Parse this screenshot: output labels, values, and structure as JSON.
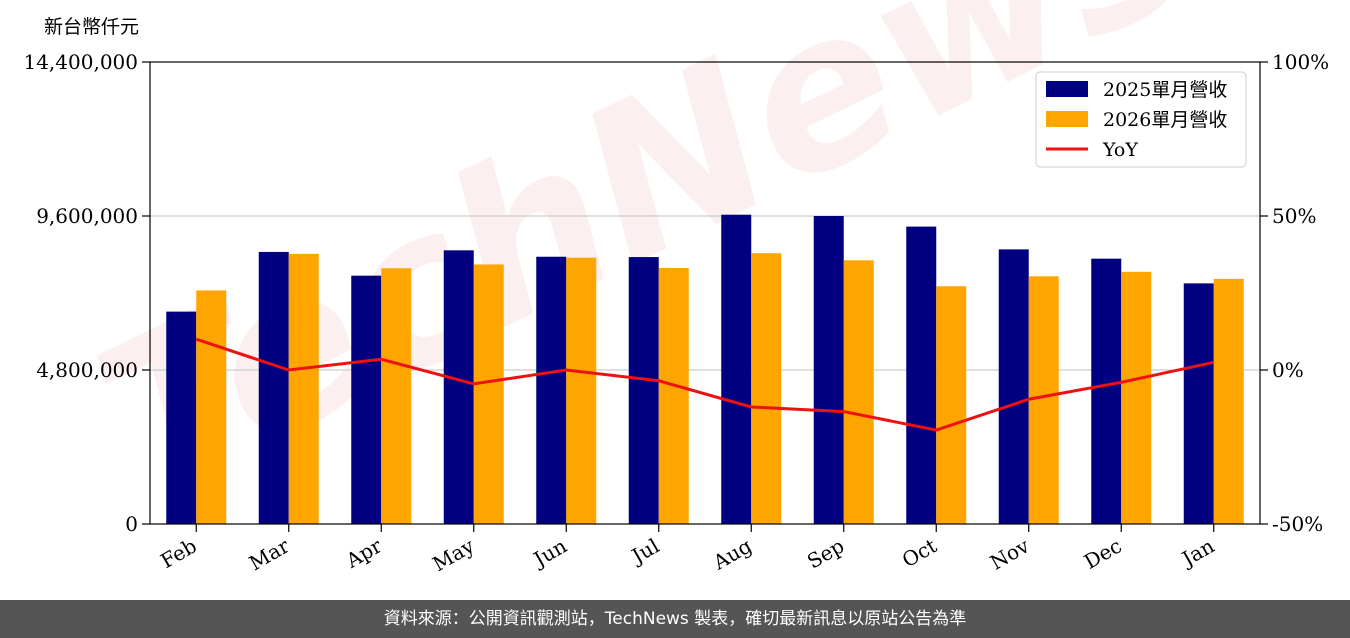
{
  "chart_data": {
    "type": "bar",
    "ylabel": "新台幣仟元",
    "categories": [
      "Feb",
      "Mar",
      "Apr",
      "May",
      "Jun",
      "Jul",
      "Aug",
      "Sep",
      "Oct",
      "Nov",
      "Dec",
      "Jan"
    ],
    "series": [
      {
        "name": "2025單月營收",
        "color": "#000080",
        "values": [
          6620000,
          8480000,
          7740000,
          8530000,
          8330000,
          8320000,
          9640000,
          9600000,
          9270000,
          8560000,
          8270000,
          7500000
        ]
      },
      {
        "name": "2026單月營收",
        "color": "#FFA500",
        "values": [
          7280000,
          8420000,
          7970000,
          8090000,
          8300000,
          7980000,
          8440000,
          8220000,
          7410000,
          7720000,
          7860000,
          7640000
        ]
      }
    ],
    "line_series": {
      "name": "YoY",
      "color": "#EE1111",
      "values": [
        10.0,
        0.0,
        3.5,
        -4.5,
        0.0,
        -3.5,
        -12.0,
        -13.5,
        -19.5,
        -9.5,
        -4.0,
        2.5
      ]
    },
    "ylim": [
      0,
      14400000
    ],
    "yticks": [
      "0",
      "4,800,000",
      "9,600,000",
      "14,400,000"
    ],
    "y2lim": [
      -50,
      100
    ],
    "y2ticks": [
      "-50%",
      "0%",
      "50%",
      "100%"
    ],
    "grid": "horizontal",
    "legend_position": "top-right"
  },
  "watermark": "TechNews",
  "footer": {
    "text": "資料來源：公開資訊觀測站，TechNews 製表，確切最新訊息以原站公告為準"
  }
}
